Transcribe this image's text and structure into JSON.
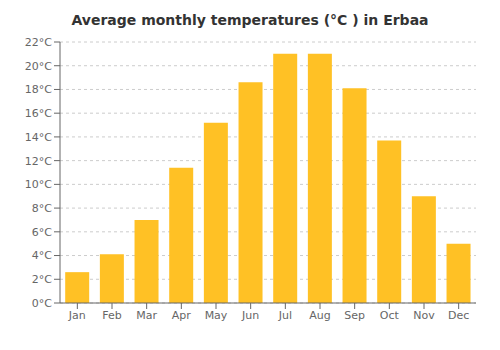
{
  "chart_data": {
    "type": "bar",
    "title": "Average monthly temperatures (°C ) in Erbaa",
    "categories": [
      "Jan",
      "Feb",
      "Mar",
      "Apr",
      "May",
      "Jun",
      "Jul",
      "Aug",
      "Sep",
      "Oct",
      "Nov",
      "Dec"
    ],
    "values": [
      2.6,
      4.1,
      7.0,
      11.4,
      15.2,
      18.6,
      21.0,
      21.0,
      18.1,
      13.7,
      9.0,
      5.0
    ],
    "color": "#FFC125",
    "ylim": [
      0,
      22
    ],
    "yticks": [
      {
        "value": 0,
        "label": "0°C"
      },
      {
        "value": 2,
        "label": "2°C"
      },
      {
        "value": 4,
        "label": "4°C"
      },
      {
        "value": 6,
        "label": "6°C"
      },
      {
        "value": 8,
        "label": "8°C"
      },
      {
        "value": 10,
        "label": "10°C"
      },
      {
        "value": 12,
        "label": "12°C"
      },
      {
        "value": 14,
        "label": "14°C"
      },
      {
        "value": 16,
        "label": "16°C"
      },
      {
        "value": 18,
        "label": "18°C"
      },
      {
        "value": 20,
        "label": "20°C"
      },
      {
        "value": 22,
        "label": "22°C"
      }
    ],
    "grid": true
  }
}
